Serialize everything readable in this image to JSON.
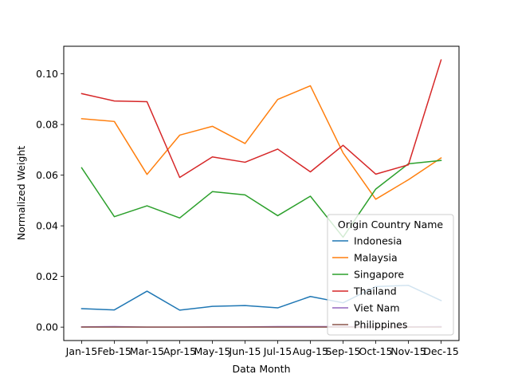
{
  "chart_data": {
    "type": "line",
    "title": "",
    "xlabel": "Data Month",
    "ylabel": "Normalized Weight",
    "categories": [
      "Jan-15",
      "Feb-15",
      "Mar-15",
      "Apr-15",
      "May-15",
      "Jun-15",
      "Jul-15",
      "Aug-15",
      "Sep-15",
      "Oct-15",
      "Nov-15",
      "Dec-15"
    ],
    "ylim": [
      -0.0053,
      0.1109
    ],
    "yticks": [
      0.0,
      0.02,
      0.04,
      0.06,
      0.08,
      0.1
    ],
    "ytick_labels": [
      "0.00",
      "0.02",
      "0.04",
      "0.06",
      "0.08",
      "0.10"
    ],
    "grid": false,
    "legend": {
      "title": "Origin Country Name",
      "placement": "lower-right"
    },
    "series": [
      {
        "name": "Indonesia",
        "color": "#1f77b4",
        "values": [
          0.0073,
          0.0068,
          0.0142,
          0.0067,
          0.0082,
          0.0085,
          0.0076,
          0.0121,
          0.0096,
          0.016,
          0.0165,
          0.0105
        ]
      },
      {
        "name": "Malaysia",
        "color": "#ff7f0e",
        "values": [
          0.0823,
          0.0812,
          0.0603,
          0.0758,
          0.0793,
          0.0725,
          0.0899,
          0.0953,
          0.0688,
          0.0505,
          0.0582,
          0.0668
        ]
      },
      {
        "name": "Singapore",
        "color": "#2ca02c",
        "values": [
          0.0629,
          0.0436,
          0.0479,
          0.0431,
          0.0535,
          0.0522,
          0.044,
          0.0517,
          0.0355,
          0.0545,
          0.0645,
          0.0658
        ]
      },
      {
        "name": "Thailand",
        "color": "#d62728",
        "values": [
          0.0922,
          0.0893,
          0.089,
          0.0591,
          0.0672,
          0.0651,
          0.0703,
          0.0613,
          0.0718,
          0.0604,
          0.0641,
          0.1055
        ]
      },
      {
        "name": "Viet Nam",
        "color": "#9467bd",
        "values": [
          0.0001,
          0.0002,
          0.0,
          0.0,
          0.0001,
          0.0001,
          0.0002,
          0.0002,
          0.0002,
          0.0001,
          0.0001,
          0.0002
        ]
      },
      {
        "name": "Philippines",
        "color": "#8c564b",
        "values": [
          0.0,
          0.0,
          0.0,
          0.0,
          0.0,
          0.0,
          0.0,
          0.0,
          0.0,
          0.0,
          0.0,
          0.0
        ]
      }
    ]
  }
}
